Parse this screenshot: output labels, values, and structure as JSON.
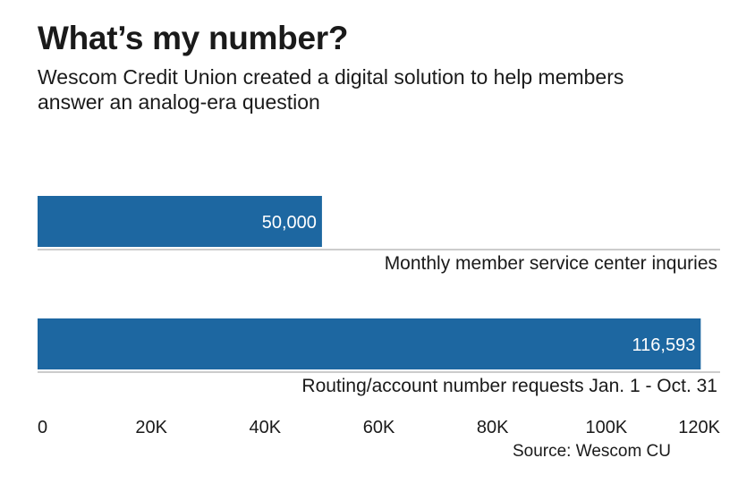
{
  "title": "What’s my number?",
  "subtitle": "Wescom Credit Union created a digital solution to help members answer an analog-era question",
  "source": "Source: Wescom CU",
  "chart_data": {
    "type": "bar",
    "orientation": "horizontal",
    "categories": [
      "Monthly member service center inquries",
      "Routing/account number requests Jan. 1 - Oct. 31"
    ],
    "values": [
      50000,
      116593
    ],
    "value_labels": [
      "50,000",
      "116,593"
    ],
    "xlim": [
      0,
      120000
    ],
    "x_ticks": [
      0,
      20000,
      40000,
      60000,
      80000,
      100000,
      120000
    ],
    "x_tick_labels": [
      "0",
      "20K",
      "40K",
      "60K",
      "80K",
      "100K",
      "120K"
    ],
    "grid": false,
    "bar_color": "#1d67a1",
    "label_color": "#ffffff",
    "rule_color": "#9a9a9a"
  }
}
